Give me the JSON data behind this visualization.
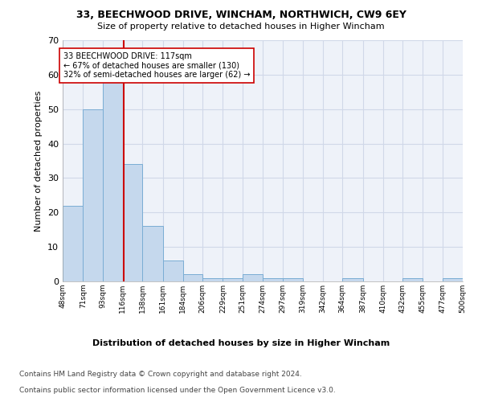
{
  "title1": "33, BEECHWOOD DRIVE, WINCHAM, NORTHWICH, CW9 6EY",
  "title2": "Size of property relative to detached houses in Higher Wincham",
  "xlabel": "Distribution of detached houses by size in Higher Wincham",
  "ylabel": "Number of detached properties",
  "bar_color": "#c5d8ed",
  "bar_edge_color": "#7aadd4",
  "grid_color": "#d0d8e8",
  "background_color": "#eef2f9",
  "bins": [
    48,
    71,
    93,
    116,
    138,
    161,
    184,
    206,
    229,
    251,
    274,
    297,
    319,
    342,
    364,
    387,
    410,
    432,
    455,
    477,
    500
  ],
  "counts": [
    22,
    50,
    59,
    34,
    16,
    6,
    2,
    1,
    1,
    2,
    1,
    1,
    0,
    0,
    1,
    0,
    0,
    1,
    0,
    1
  ],
  "property_size": 117,
  "vline_color": "#cc0000",
  "annotation_text": "33 BEECHWOOD DRIVE: 117sqm\n← 67% of detached houses are smaller (130)\n32% of semi-detached houses are larger (62) →",
  "annotation_box_color": "#ffffff",
  "annotation_border_color": "#cc0000",
  "ylim": [
    0,
    70
  ],
  "yticks": [
    0,
    10,
    20,
    30,
    40,
    50,
    60,
    70
  ],
  "footer1": "Contains HM Land Registry data © Crown copyright and database right 2024.",
  "footer2": "Contains public sector information licensed under the Open Government Licence v3.0."
}
